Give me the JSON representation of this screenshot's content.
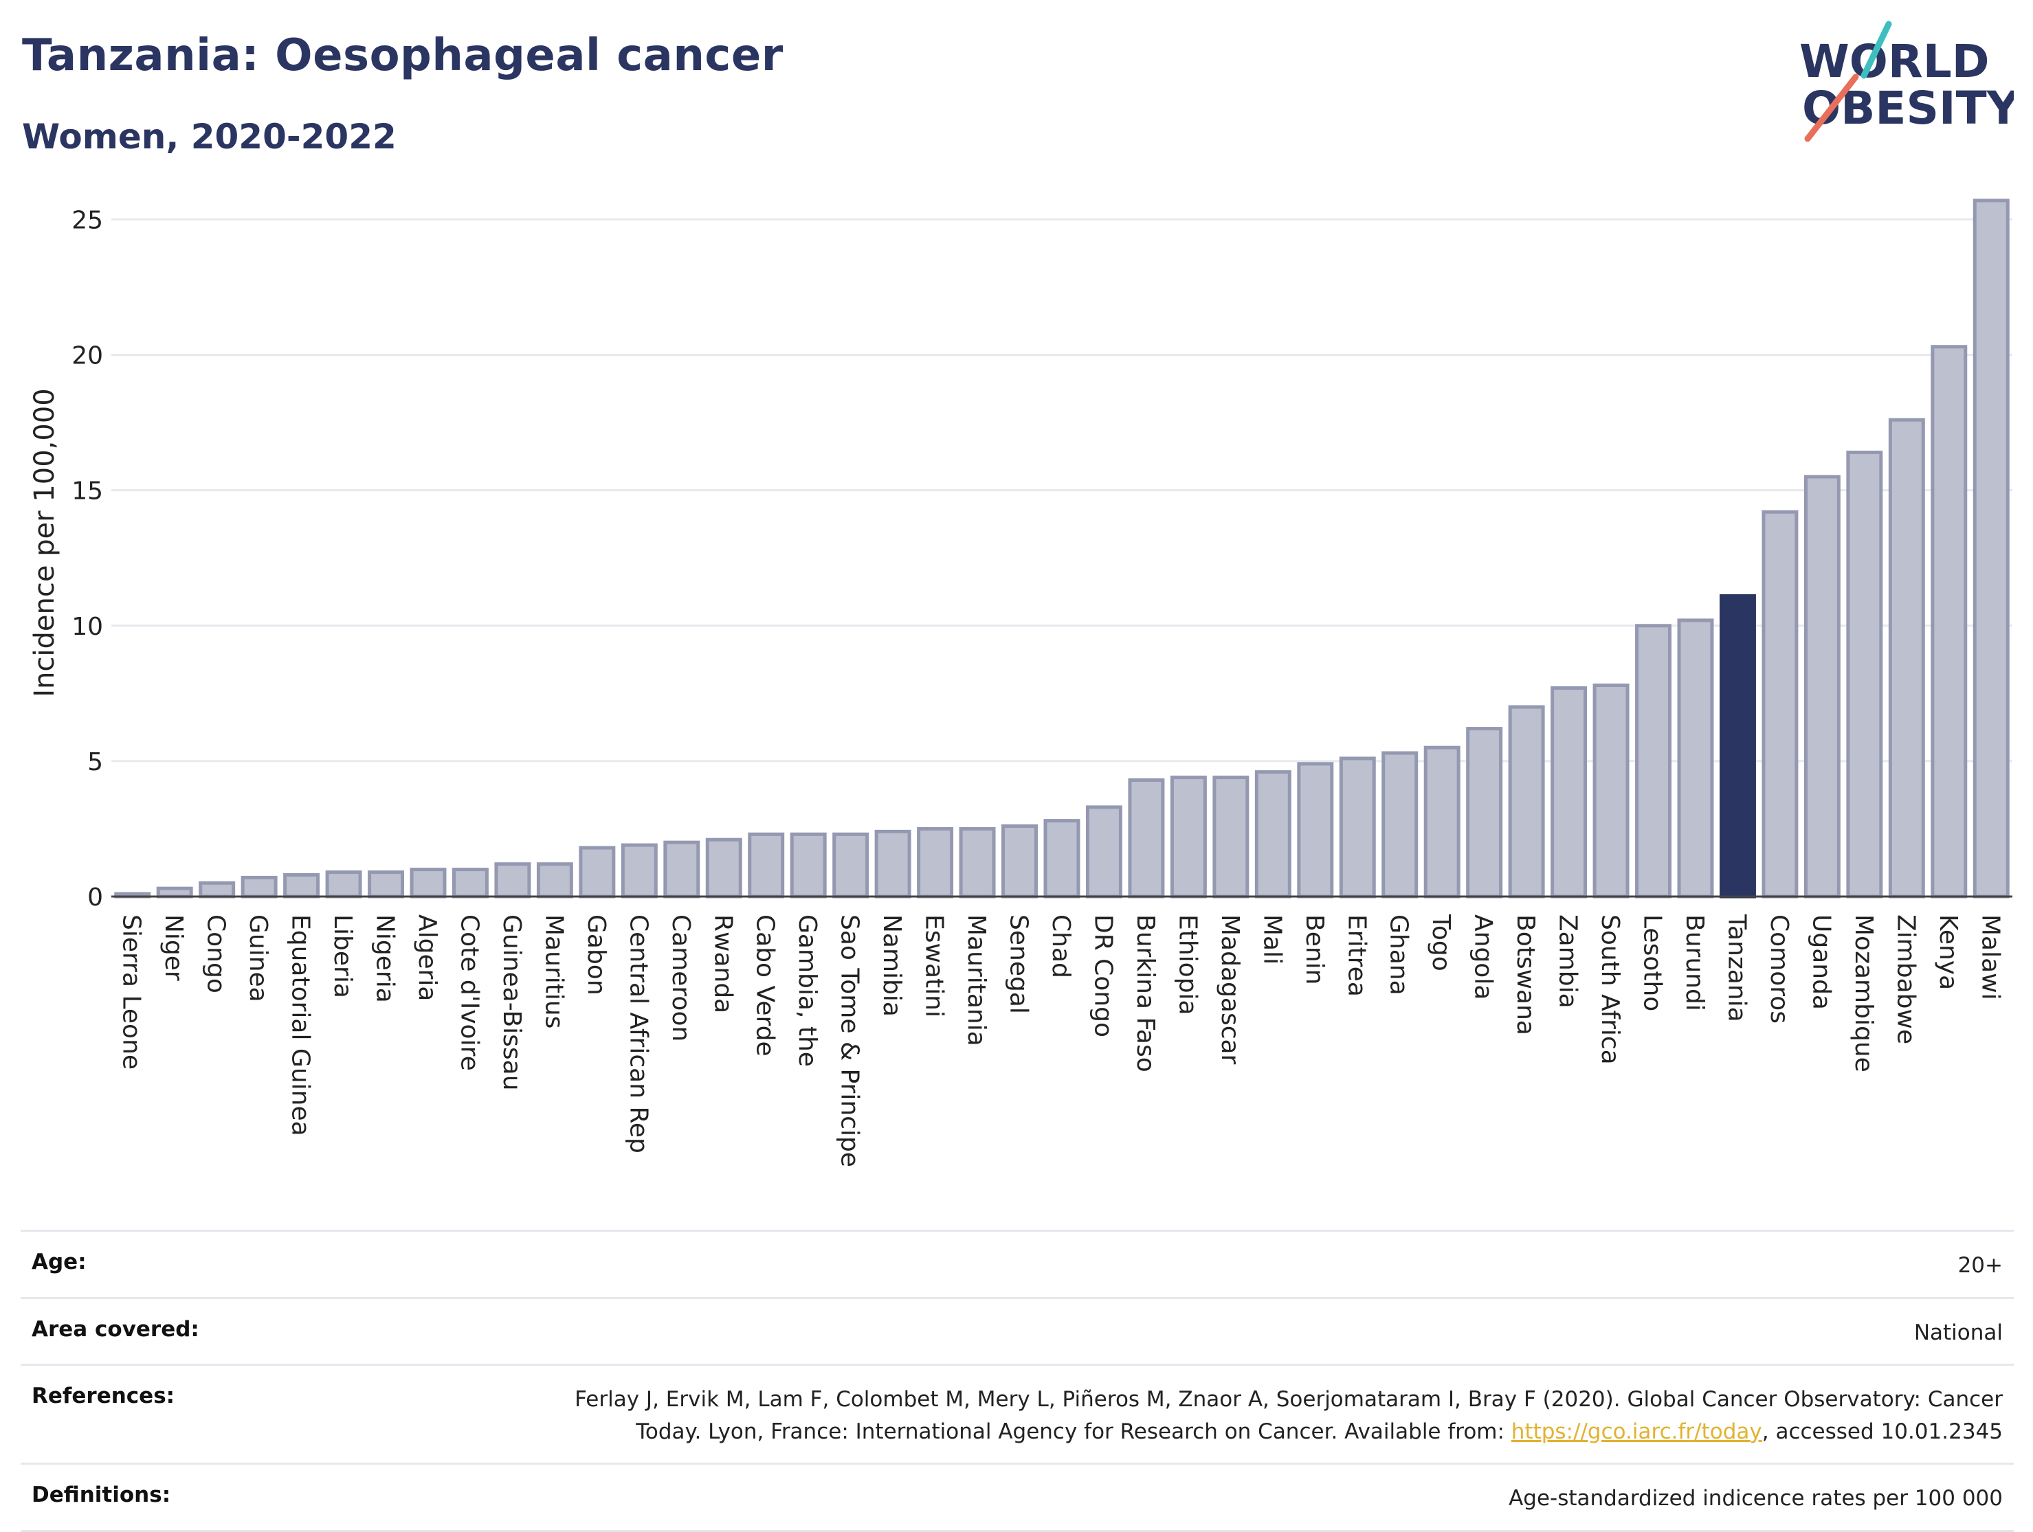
{
  "header": {
    "title": "Tanzania: Oesophageal cancer",
    "subtitle": "Women, 2020-2022"
  },
  "logo": {
    "line1": "WORLD",
    "line2": "OBESITY"
  },
  "chart_data": {
    "type": "bar",
    "title": "Tanzania: Oesophageal cancer",
    "subtitle": "Women, 2020-2022",
    "ylabel": "Incidence per 100,000",
    "xlabel": "",
    "ylim": [
      0,
      26
    ],
    "yticks": [
      0,
      5,
      10,
      15,
      20,
      25
    ],
    "grid": true,
    "highlight": "Tanzania",
    "colors": {
      "bar": "#bcc0cf",
      "bar_stroke": "#9498b0",
      "highlight": "#2b3561"
    },
    "categories": [
      "Sierra Leone",
      "Niger",
      "Congo",
      "Guinea",
      "Equatorial Guinea",
      "Liberia",
      "Nigeria",
      "Algeria",
      "Cote d'Ivoire",
      "Guinea-Bissau",
      "Mauritius",
      "Gabon",
      "Central African Rep",
      "Cameroon",
      "Rwanda",
      "Cabo Verde",
      "Gambia, the",
      "Sao Tome & Principe",
      "Namibia",
      "Eswatini",
      "Mauritania",
      "Senegal",
      "Chad",
      "DR Congo",
      "Burkina Faso",
      "Ethiopia",
      "Madagascar",
      "Mali",
      "Benin",
      "Eritrea",
      "Ghana",
      "Togo",
      "Angola",
      "Botswana",
      "Zambia",
      "South Africa",
      "Lesotho",
      "Burundi",
      "Tanzania",
      "Comoros",
      "Uganda",
      "Mozambique",
      "Zimbabwe",
      "Kenya",
      "Malawi"
    ],
    "values": [
      0.1,
      0.3,
      0.5,
      0.7,
      0.8,
      0.9,
      0.9,
      1.0,
      1.0,
      1.2,
      1.2,
      1.8,
      1.9,
      2.0,
      2.1,
      2.3,
      2.3,
      2.3,
      2.4,
      2.5,
      2.5,
      2.6,
      2.8,
      3.3,
      4.3,
      4.4,
      4.4,
      4.6,
      4.9,
      5.1,
      5.3,
      5.5,
      6.2,
      7.0,
      7.7,
      7.8,
      10.0,
      10.2,
      11.1,
      14.2,
      15.5,
      16.4,
      17.6,
      20.3,
      25.7
    ]
  },
  "info": {
    "age_label": "Age:",
    "age_value": "20+",
    "area_label": "Area covered:",
    "area_value": "National",
    "references_label": "References:",
    "references_text_1": "Ferlay J, Ervik M, Lam F, Colombet M, Mery L, Piñeros M, Znaor A, Soerjomataram I, Bray F (2020). Global Cancer Observatory: Cancer Today. Lyon, France: International Agency for Research on Cancer. Available from: ",
    "references_link": "https://gco.iarc.fr/today",
    "references_text_2": ", accessed 10.01.2345",
    "definitions_label": "Definitions:",
    "definitions_value": "Age-standardized indicence rates per 100 000"
  }
}
